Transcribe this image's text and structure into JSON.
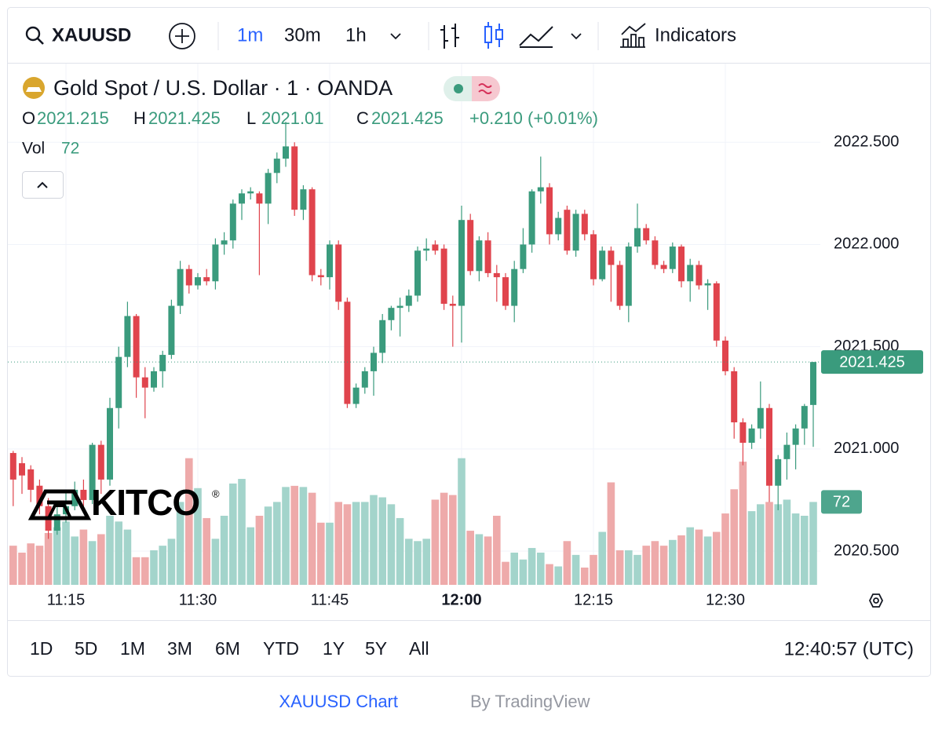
{
  "toolbar": {
    "symbol": "XAUUSD",
    "intervals": [
      "1m",
      "30m",
      "1h"
    ],
    "indicators": "Indicators"
  },
  "legend": {
    "title": "Gold Spot / U.S. Dollar · 1 · OANDA",
    "ohlc_labels": [
      "O",
      "H",
      "L",
      "C"
    ],
    "change": "+0.210 (+0.01%)",
    "volume_label": "Vol"
  },
  "watermark": "KITCO",
  "watermark_mark": "®",
  "ranges": [
    "1D",
    "5D",
    "1M",
    "3M",
    "6M",
    "YTD",
    "1Y",
    "5Y",
    "All"
  ],
  "clock": "12:40:57 (UTC)",
  "footer": {
    "link": "XAUUSD Chart",
    "by": "By TradingView"
  },
  "chart_data": {
    "type": "candlestick",
    "categories": [
      null,
      null,
      null,
      null,
      null,
      null,
      "11:15",
      null,
      null,
      null,
      null,
      null,
      null,
      null,
      null,
      null,
      null,
      null,
      null,
      null,
      null,
      "11:30",
      null,
      null,
      null,
      null,
      null,
      null,
      null,
      null,
      null,
      null,
      null,
      null,
      null,
      null,
      "11:45",
      null,
      null,
      null,
      null,
      null,
      null,
      null,
      null,
      null,
      null,
      null,
      null,
      null,
      null,
      "12:00",
      null,
      null,
      null,
      null,
      null,
      null,
      null,
      null,
      null,
      null,
      null,
      null,
      null,
      null,
      "12:15",
      null,
      null,
      null,
      null,
      null,
      null,
      null,
      null,
      null,
      null,
      null,
      null,
      null,
      null,
      "12:30",
      null,
      null,
      null,
      null,
      null,
      null,
      null,
      null,
      null,
      null
    ],
    "bold_category": "12:00",
    "open": [
      2020.98,
      2020.93,
      2020.9,
      2020.82,
      2020.72,
      2020.6,
      2020.68,
      2020.72,
      2020.8,
      2020.75,
      2021.02,
      2020.85,
      2021.2,
      2021.45,
      2021.65,
      2021.35,
      2021.3,
      2021.38,
      2021.46,
      2021.7,
      2021.88,
      2021.8,
      2021.84,
      2021.82,
      2022.0,
      2022.02,
      2022.2,
      2022.25,
      2022.25,
      2022.2,
      2022.35,
      2022.42,
      2022.48,
      2022.17,
      2022.27,
      2021.85,
      2021.84,
      2022.0,
      2021.72,
      2021.22,
      2021.3,
      2021.38,
      2021.47,
      2021.63,
      2021.69,
      2021.7,
      2021.75,
      2021.97,
      2022.0,
      2021.98,
      2021.71,
      2021.7,
      2022.12,
      2021.87,
      2022.02,
      2021.86,
      2021.84,
      2021.7,
      2021.88,
      2022.0,
      2022.26,
      2022.28,
      2022.05,
      2022.17,
      2021.97,
      2022.15,
      2022.05,
      2021.83,
      2021.97,
      2021.9,
      2021.7,
      2021.99,
      2022.08,
      2022.02,
      2021.9,
      2021.88,
      2021.99,
      2021.82,
      2021.9,
      2021.8,
      2021.81,
      2021.53,
      2021.38,
      2021.13,
      2021.03,
      2021.1,
      2021.2,
      2020.82,
      2020.95,
      2021.02,
      2021.1,
      2021.215
    ],
    "high": [
      2020.99,
      2020.96,
      2020.92,
      2020.85,
      2020.76,
      2020.72,
      2020.8,
      2020.84,
      2020.85,
      2021.03,
      2021.04,
      2021.25,
      2021.5,
      2021.72,
      2021.66,
      2021.4,
      2021.4,
      2021.48,
      2021.73,
      2021.92,
      2021.9,
      2021.86,
      2021.88,
      2022.03,
      2022.06,
      2022.22,
      2022.27,
      2022.28,
      2022.26,
      2022.37,
      2022.45,
      2022.6,
      2022.5,
      2022.29,
      2022.28,
      2021.88,
      2022.02,
      2022.02,
      2021.74,
      2021.32,
      2021.4,
      2021.5,
      2021.66,
      2021.7,
      2021.74,
      2021.78,
      2021.99,
      2022.03,
      2022.02,
      2022.0,
      2021.75,
      2022.19,
      2022.15,
      2022.04,
      2022.06,
      2021.9,
      2021.86,
      2021.92,
      2022.08,
      2022.27,
      2022.43,
      2022.3,
      2022.16,
      2022.19,
      2022.17,
      2022.17,
      2022.07,
      2021.99,
      2021.99,
      2021.92,
      2022.01,
      2022.2,
      2022.1,
      2022.04,
      2021.92,
      2022.01,
      2022.0,
      2021.93,
      2021.92,
      2021.83,
      2021.82,
      2021.55,
      2021.4,
      2021.15,
      2021.12,
      2021.33,
      2021.22,
      2020.97,
      2021.08,
      2021.12,
      2021.22,
      2021.425
    ],
    "low": [
      2020.72,
      2020.78,
      2020.74,
      2020.68,
      2020.56,
      2020.58,
      2020.64,
      2020.7,
      2020.72,
      2020.73,
      2020.78,
      2020.82,
      2021.1,
      2021.4,
      2021.25,
      2021.15,
      2021.28,
      2021.3,
      2021.44,
      2021.66,
      2021.76,
      2021.78,
      2021.8,
      2021.78,
      2021.95,
      2021.98,
      2022.12,
      2022.22,
      2021.85,
      2022.1,
      2022.3,
      2022.38,
      2022.14,
      2022.12,
      2021.82,
      2021.8,
      2021.78,
      2021.68,
      2021.2,
      2021.2,
      2021.27,
      2021.26,
      2021.42,
      2021.58,
      2021.55,
      2021.67,
      2021.72,
      2021.92,
      2021.95,
      2021.68,
      2021.5,
      2021.52,
      2021.85,
      2021.82,
      2021.84,
      2021.72,
      2021.68,
      2021.62,
      2021.86,
      2021.96,
      2022.2,
      2022.0,
      2022.02,
      2021.95,
      2021.94,
      2022.02,
      2021.8,
      2021.82,
      2021.72,
      2021.68,
      2021.62,
      2021.96,
      2022.0,
      2021.88,
      2021.86,
      2021.86,
      2021.79,
      2021.72,
      2021.78,
      2021.68,
      2021.5,
      2021.36,
      2021.05,
      2020.92,
      2021.0,
      2021.05,
      2020.74,
      2020.7,
      2020.85,
      2020.9,
      2021.02,
      2021.01
    ],
    "close": [
      2020.85,
      2020.87,
      2020.8,
      2020.72,
      2020.6,
      2020.68,
      2020.72,
      2020.8,
      2020.75,
      2021.02,
      2020.85,
      2021.2,
      2021.45,
      2021.65,
      2021.35,
      2021.3,
      2021.38,
      2021.46,
      2021.7,
      2021.88,
      2021.8,
      2021.84,
      2021.82,
      2022.0,
      2022.02,
      2022.2,
      2022.25,
      2022.26,
      2022.2,
      2022.35,
      2022.42,
      2022.48,
      2022.17,
      2022.27,
      2021.85,
      2021.84,
      2022.0,
      2021.72,
      2021.22,
      2021.3,
      2021.38,
      2021.47,
      2021.63,
      2021.69,
      2021.7,
      2021.75,
      2021.97,
      2021.98,
      2021.97,
      2021.71,
      2021.7,
      2022.12,
      2021.87,
      2022.02,
      2021.86,
      2021.84,
      2021.7,
      2021.88,
      2022.0,
      2022.26,
      2022.28,
      2022.05,
      2022.13,
      2021.97,
      2022.15,
      2022.05,
      2021.83,
      2021.97,
      2021.9,
      2021.7,
      2021.99,
      2022.08,
      2022.02,
      2021.9,
      2021.88,
      2021.99,
      2021.82,
      2021.9,
      2021.8,
      2021.81,
      2021.53,
      2021.38,
      2021.13,
      2021.03,
      2021.1,
      2021.2,
      2020.82,
      2020.95,
      2021.02,
      2021.1,
      2021.21,
      2021.425
    ],
    "volume": [
      34,
      28,
      36,
      34,
      45,
      50,
      55,
      42,
      48,
      38,
      44,
      60,
      55,
      48,
      24,
      24,
      30,
      34,
      40,
      72,
      110,
      84,
      58,
      40,
      60,
      88,
      92,
      50,
      60,
      68,
      72,
      85,
      86,
      85,
      80,
      54,
      54,
      72,
      70,
      72,
      72,
      78,
      76,
      70,
      58,
      40,
      38,
      40,
      74,
      80,
      78,
      110,
      47,
      44,
      42,
      60,
      20,
      28,
      22,
      32,
      28,
      18,
      16,
      38,
      26,
      15,
      26,
      46,
      89,
      30,
      30,
      26,
      34,
      38,
      34,
      39,
      43,
      50,
      48,
      42,
      46,
      62,
      83,
      107,
      64,
      70,
      72,
      70,
      74,
      62,
      60,
      72
    ],
    "ylim": [
      2020.335,
      2022.885
    ],
    "yticks": [
      {
        "value": 2020.5,
        "label": "2020.500"
      },
      {
        "value": 2021,
        "label": "2021.000"
      },
      {
        "value": 2021.5,
        "label": "2021.500"
      },
      {
        "value": 2022,
        "label": "2022.000"
      },
      {
        "value": 2022.5,
        "label": "2022.500"
      }
    ],
    "volume_lim": [
      0,
      300
    ],
    "up_color": "#3a9b7d",
    "down_color": "#e0444d",
    "up_volume_color": "#a3d4cb",
    "down_volume_color": "#eeaaaa",
    "grid": true
  }
}
